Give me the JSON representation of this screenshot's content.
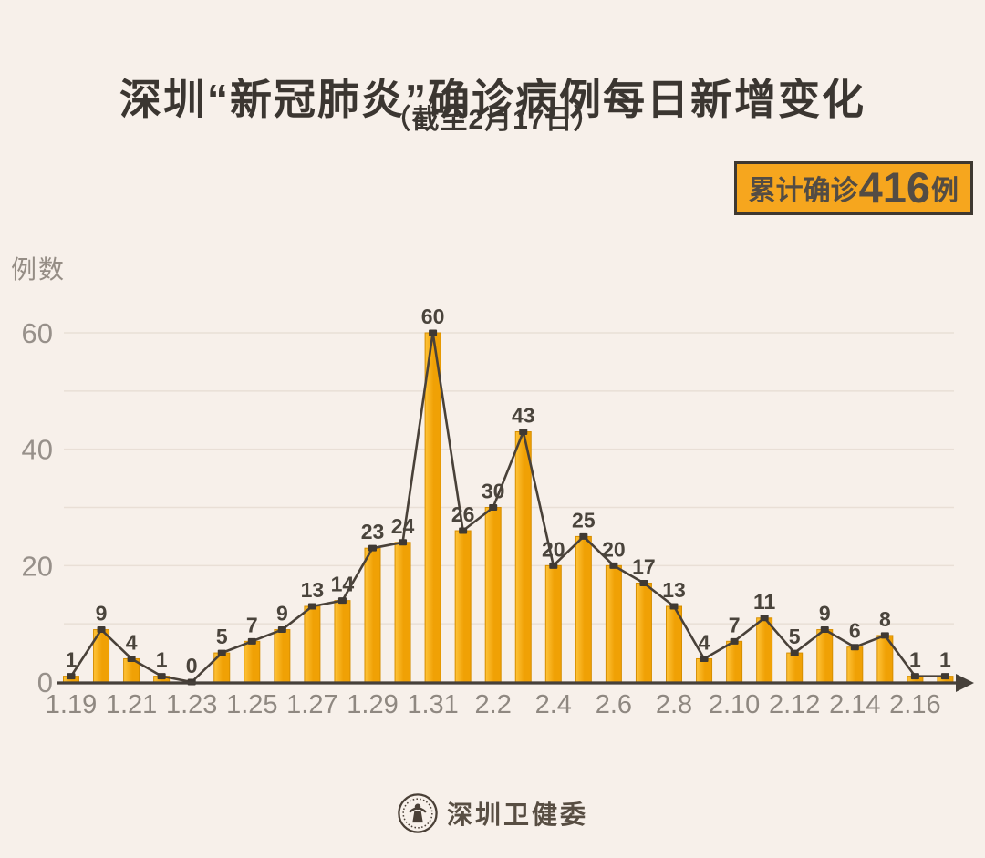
{
  "header": {
    "title": "深圳“新冠肺炎”确诊病例每日新增变化",
    "subtitle": "（截至2月17日）"
  },
  "badge": {
    "label": "累计确诊",
    "value": "416",
    "unit": "例"
  },
  "footer": {
    "source": "深圳卫健委"
  },
  "colors": {
    "background": "#F7F0EA",
    "bar_fill": "#F0A105",
    "bar_fill_light": "#FFC43A",
    "bar_stroke": "#D68E00",
    "line": "#494139",
    "marker": "#3F3933",
    "grid": "#E9DFD6",
    "axis": "#46403A",
    "value_label": "#4A443C",
    "x_tick_text": "#8F8881",
    "y_tick_text": "#97908A",
    "badge_bg": "#F6A61E",
    "badge_border": "#3E3831",
    "title_text": "#3B3631"
  },
  "chart_data": {
    "type": "bar",
    "line_overlay": true,
    "title": "深圳“新冠肺炎”确诊病例每日新增变化",
    "subtitle": "（截至2月17日）",
    "total_label": "累计确诊416例",
    "total": 416,
    "ylabel": "例数",
    "xlabel": "",
    "ylim": [
      0,
      63
    ],
    "yticks": [
      0,
      20,
      40,
      60
    ],
    "grid_step": 10,
    "grid": true,
    "legend": false,
    "categories": [
      "1.19",
      "1.20",
      "1.21",
      "1.22",
      "1.23",
      "1.24",
      "1.25",
      "1.26",
      "1.27",
      "1.28",
      "1.29",
      "1.30",
      "1.31",
      "2.1",
      "2.2",
      "2.3",
      "2.4",
      "2.5",
      "2.6",
      "2.7",
      "2.8",
      "2.9",
      "2.10",
      "2.11",
      "2.12",
      "2.13",
      "2.14",
      "2.15",
      "2.16",
      "2.17"
    ],
    "values": [
      1,
      9,
      4,
      1,
      0,
      5,
      7,
      9,
      13,
      14,
      23,
      24,
      60,
      26,
      30,
      43,
      20,
      25,
      20,
      17,
      13,
      4,
      7,
      11,
      5,
      9,
      6,
      8,
      1,
      1
    ],
    "x_ticks": [
      "1.19",
      "1.21",
      "1.23",
      "1.25",
      "1.27",
      "1.29",
      "1.31",
      "2.2",
      "2.4",
      "2.6",
      "2.8",
      "2.10",
      "2.12",
      "2.14",
      "2.16"
    ]
  }
}
